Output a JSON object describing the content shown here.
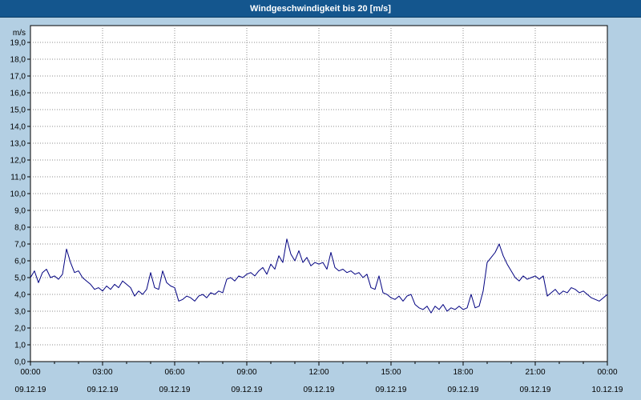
{
  "title": "Windgeschwindigkeit bis 20 [m/s]",
  "colors": {
    "titlebar_bg": "#14568e",
    "titlebar_text": "#ffffff",
    "background": "#b3cfe3",
    "plot_bg": "#ffffff",
    "line": "#000080",
    "grid": "#8c8c8c",
    "axis": "#000000"
  },
  "chart_data": {
    "type": "line",
    "title": "Windgeschwindigkeit bis 20 [m/s]",
    "xlabel": "",
    "ylabel": "m/s",
    "ylim": [
      0,
      20
    ],
    "grid": true,
    "legend_position": "none",
    "y_tick_labels": [
      "0,0",
      "1,0",
      "2,0",
      "3,0",
      "4,0",
      "5,0",
      "6,0",
      "7,0",
      "8,0",
      "9,0",
      "10,0",
      "11,0",
      "12,0",
      "13,0",
      "14,0",
      "15,0",
      "16,0",
      "17,0",
      "18,0",
      "19,0"
    ],
    "x_range_hours": [
      0,
      24
    ],
    "x_ticks": [
      {
        "hour": 0,
        "time": "00:00",
        "date": "09.12.19"
      },
      {
        "hour": 3,
        "time": "03:00",
        "date": "09.12.19"
      },
      {
        "hour": 6,
        "time": "06:00",
        "date": "09.12.19"
      },
      {
        "hour": 9,
        "time": "09:00",
        "date": "09.12.19"
      },
      {
        "hour": 12,
        "time": "12:00",
        "date": "09.12.19"
      },
      {
        "hour": 15,
        "time": "15:00",
        "date": "09.12.19"
      },
      {
        "hour": 18,
        "time": "18:00",
        "date": "09.12.19"
      },
      {
        "hour": 21,
        "time": "21:00",
        "date": "09.12.19"
      },
      {
        "hour": 24,
        "time": "00:00",
        "date": "10.12.19"
      }
    ],
    "series": [
      {
        "name": "Windgeschwindigkeit",
        "unit": "m/s",
        "x_start_hour": 0,
        "x_step_minutes": 10,
        "values": [
          5.0,
          5.4,
          4.7,
          5.3,
          5.5,
          5.0,
          5.1,
          4.9,
          5.2,
          6.7,
          5.9,
          5.3,
          5.4,
          5.0,
          4.8,
          4.6,
          4.3,
          4.4,
          4.2,
          4.5,
          4.3,
          4.6,
          4.4,
          4.8,
          4.6,
          4.4,
          3.9,
          4.2,
          4.0,
          4.3,
          5.3,
          4.4,
          4.3,
          5.4,
          4.7,
          4.5,
          4.4,
          3.6,
          3.7,
          3.9,
          3.8,
          3.6,
          3.9,
          4.0,
          3.8,
          4.1,
          4.0,
          4.2,
          4.1,
          4.9,
          5.0,
          4.8,
          5.1,
          5.0,
          5.2,
          5.3,
          5.1,
          5.4,
          5.6,
          5.2,
          5.8,
          5.5,
          6.3,
          5.9,
          7.3,
          6.4,
          6.0,
          6.6,
          5.9,
          6.2,
          5.7,
          5.9,
          5.8,
          5.9,
          5.5,
          6.5,
          5.6,
          5.4,
          5.5,
          5.3,
          5.4,
          5.2,
          5.3,
          5.0,
          5.2,
          4.4,
          4.3,
          5.1,
          4.1,
          4.0,
          3.8,
          3.7,
          3.9,
          3.6,
          3.9,
          4.0,
          3.4,
          3.2,
          3.1,
          3.3,
          2.9,
          3.3,
          3.1,
          3.4,
          3.0,
          3.2,
          3.1,
          3.3,
          3.1,
          3.2,
          4.0,
          3.2,
          3.3,
          4.2,
          5.9,
          6.2,
          6.5,
          7.0,
          6.3,
          5.8,
          5.4,
          5.0,
          4.8,
          5.1,
          4.9,
          5.0,
          5.1,
          4.9,
          5.1,
          3.9,
          4.1,
          4.3,
          4.0,
          4.2,
          4.1,
          4.4,
          4.3,
          4.1,
          4.2,
          4.0,
          3.8,
          3.7,
          3.6,
          3.8,
          4.0
        ]
      }
    ]
  }
}
